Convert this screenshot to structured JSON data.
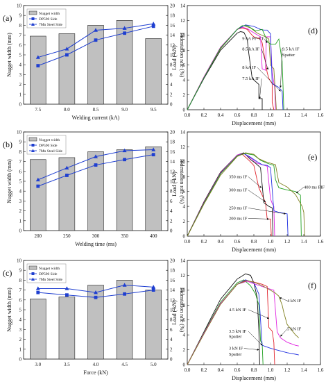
{
  "colors": {
    "bar_fill": "#c0c0c0",
    "dp590": "#1f3fd0",
    "steel": "#1f3fd0",
    "black": "#111111",
    "red": "#e0202a",
    "blue": "#2030e0",
    "magenta": "#e020e0",
    "olive": "#808020",
    "green": "#20a020",
    "gray": "#888888"
  },
  "chart_data": [
    {
      "panel": "(a)",
      "type": "bar",
      "categories": [
        "7.5",
        "8.0",
        "8.5",
        "9.0",
        "9.5"
      ],
      "xlabel": "Welding current (kA)",
      "ylabel": "Nugget width (mm)",
      "y2label": "Indentation rate (%)",
      "ylim": [
        0,
        10
      ],
      "yticks": [
        0,
        1,
        2,
        3,
        4,
        5,
        6,
        7,
        8,
        9,
        10
      ],
      "y2lim": [
        0,
        20
      ],
      "y2ticks": [
        0,
        2,
        4,
        6,
        8,
        10,
        12,
        14,
        16,
        18,
        20
      ],
      "legend": [
        "Nugget width",
        "DP590 Side",
        "7Mn Steel Side"
      ],
      "legend_position": "top-left",
      "bars": {
        "name": "Nugget width",
        "values": [
          6.9,
          7.15,
          8.0,
          8.5,
          6.65
        ]
      },
      "series": [
        {
          "name": "DP590 Side",
          "marker": "square",
          "axis": "right",
          "values": [
            7.8,
            10.0,
            13.0,
            14.4,
            15.8
          ]
        },
        {
          "name": "7Mn Steel Side",
          "marker": "triangle",
          "axis": "right",
          "values": [
            9.5,
            11.2,
            15.0,
            15.4,
            16.3
          ]
        }
      ]
    },
    {
      "panel": "(b)",
      "type": "bar",
      "categories": [
        "200",
        "250",
        "300",
        "350",
        "400"
      ],
      "xlabel": "Welding time (ms)",
      "ylabel": "Nugget width (mm)",
      "y2label": "Indentation rate (%)",
      "ylim": [
        0,
        10
      ],
      "yticks": [
        0,
        1,
        2,
        3,
        4,
        5,
        6,
        7,
        8,
        9,
        10
      ],
      "y2lim": [
        0,
        20
      ],
      "y2ticks": [
        0,
        2,
        4,
        6,
        8,
        10,
        12,
        14,
        16,
        18,
        20
      ],
      "legend": [
        "Nugget width",
        "DP590 Side",
        "7Mn Steel Side"
      ],
      "legend_position": "top-left",
      "bars": {
        "name": "Nugget width",
        "values": [
          7.2,
          7.4,
          8.0,
          8.2,
          8.5
        ]
      },
      "series": [
        {
          "name": "DP590 Side",
          "marker": "square",
          "axis": "right",
          "values": [
            9.0,
            11.2,
            13.3,
            14.4,
            15.4
          ]
        },
        {
          "name": "7Mn Steel Side",
          "marker": "triangle",
          "axis": "right",
          "values": [
            10.3,
            12.7,
            15.0,
            16.2,
            16.4
          ]
        }
      ]
    },
    {
      "panel": "(c)",
      "type": "bar",
      "categories": [
        "3.0",
        "3.5",
        "4.0",
        "4.5",
        "5.0"
      ],
      "xlabel": "Force (kN)",
      "ylabel": "Nugget width (mm)",
      "y2label": "Indentation rate (%)",
      "ylim": [
        0,
        10
      ],
      "yticks": [
        0,
        1,
        2,
        3,
        4,
        5,
        6,
        7,
        8,
        9,
        10
      ],
      "y2lim": [
        0,
        20
      ],
      "y2ticks": [
        0,
        2,
        4,
        6,
        8,
        10,
        12,
        14,
        16,
        18,
        20
      ],
      "legend": [
        "Nugget width",
        "DP590 Side",
        "7Mn Steel Side"
      ],
      "legend_position": "top-left",
      "bars": {
        "name": "Nugget width",
        "values": [
          6.1,
          6.3,
          7.5,
          8.0,
          7.0
        ]
      },
      "series": [
        {
          "name": "DP590 Side",
          "marker": "square",
          "axis": "right",
          "values": [
            13.5,
            13.0,
            12.5,
            13.2,
            14.0
          ]
        },
        {
          "name": "7Mn Steel Side",
          "marker": "triangle",
          "axis": "right",
          "values": [
            14.3,
            14.3,
            13.5,
            15.0,
            14.6
          ]
        }
      ]
    },
    {
      "panel": "(d)",
      "type": "line",
      "xlabel": "Displacement (mm)",
      "ylabel": "Load ( kN)",
      "xlim": [
        0,
        1.6
      ],
      "xticks": [
        "0.0",
        "0.2",
        "0.4",
        "0.6",
        "0.8",
        "1.0",
        "1.2",
        "1.4",
        "1.6"
      ],
      "ylim": [
        0,
        14
      ],
      "yticks": [
        0,
        2,
        4,
        6,
        8,
        10,
        12,
        14
      ],
      "series": [
        {
          "color": "black",
          "x": [
            0,
            0.2,
            0.4,
            0.6,
            0.64,
            0.68,
            0.72,
            0.74,
            0.78,
            0.86,
            0.86,
            0.9,
            0.9
          ],
          "y": [
            0,
            4.2,
            8,
            10.3,
            10.5,
            10.4,
            9.5,
            7.5,
            4.2,
            3.4,
            1.5,
            1.5,
            0
          ]
        },
        {
          "color": "red",
          "x": [
            0,
            0.2,
            0.4,
            0.6,
            0.66,
            0.72,
            0.78,
            0.8,
            0.88,
            0.9,
            0.96,
            0.98,
            1.02,
            1.02,
            1.04
          ],
          "y": [
            0,
            4.4,
            8.4,
            10.8,
            11,
            10.8,
            10,
            9.8,
            9.5,
            9,
            5,
            4.2,
            3.5,
            1,
            0
          ]
        },
        {
          "color": "magenta",
          "x": [
            0,
            0.2,
            0.4,
            0.6,
            0.66,
            0.72,
            0.82,
            0.88,
            0.9,
            0.94,
            0.95,
            1.0,
            1.02,
            1.05,
            1.06
          ],
          "y": [
            0,
            4.4,
            8.4,
            10.8,
            11.1,
            10.9,
            10.2,
            9.8,
            5.5,
            5.3,
            9.8,
            9.8,
            5,
            3,
            0
          ]
        },
        {
          "color": "olive",
          "x": [
            0,
            0.2,
            0.4,
            0.6,
            0.68,
            0.76,
            0.84,
            0.9,
            0.94,
            0.98,
            1.0,
            1.04,
            1.06,
            1.07
          ],
          "y": [
            0,
            4.3,
            8.2,
            10.8,
            11.3,
            11,
            10.3,
            10,
            9.8,
            9.5,
            6,
            5.5,
            2,
            0
          ]
        },
        {
          "color": "blue",
          "x": [
            0,
            0.2,
            0.4,
            0.6,
            0.7,
            0.8,
            0.88,
            0.92,
            0.96,
            1.0,
            1.02,
            1.1,
            1.14,
            1.15
          ],
          "y": [
            0,
            4.3,
            8.3,
            10.8,
            11.4,
            11.2,
            10.8,
            10.7,
            10.7,
            10.2,
            3.5,
            3,
            2.5,
            0
          ]
        },
        {
          "color": "green",
          "x": [
            0,
            0.2,
            0.4,
            0.6,
            0.66,
            0.72,
            0.82,
            0.9,
            0.94,
            0.96,
            1.0,
            1.06,
            1.1,
            1.14,
            1.16
          ],
          "y": [
            0,
            4.3,
            8.3,
            10.8,
            11.3,
            11.3,
            10.6,
            10.8,
            9.8,
            9.2,
            8.8,
            8.8,
            9.5,
            6.5,
            0
          ]
        }
      ],
      "annotations": [
        "9 kA PF-TT",
        "8.5 kA IF",
        "9.5 kA IF",
        "Spatter",
        "8 kA IF",
        "7.5 kA IF"
      ]
    },
    {
      "panel": "(e)",
      "type": "line",
      "xlabel": "Displacement (mm)",
      "ylabel": "Load ( kN)",
      "xlim": [
        0,
        1.6
      ],
      "xticks": [
        "0.0",
        "0.2",
        "0.4",
        "0.6",
        "0.8",
        "1.0",
        "1.2",
        "1.4",
        "1.6"
      ],
      "ylim": [
        0,
        14
      ],
      "yticks": [
        0,
        2,
        4,
        6,
        8,
        10,
        12,
        14
      ],
      "series": [
        {
          "color": "red",
          "x": [
            0,
            0.2,
            0.4,
            0.6,
            0.66,
            0.74,
            0.8,
            0.86,
            0.9,
            0.94,
            0.96,
            1.0,
            1.01
          ],
          "y": [
            0,
            4.6,
            8.6,
            10.8,
            11,
            10.2,
            9.5,
            6.5,
            5.5,
            4.5,
            2.3,
            2.3,
            0
          ]
        },
        {
          "color": "black",
          "x": [
            0,
            0.2,
            0.4,
            0.6,
            0.68,
            0.76,
            0.82,
            0.88,
            0.92,
            0.98,
            1.02,
            1.03
          ],
          "y": [
            0,
            4.6,
            8.6,
            10.9,
            11.2,
            10.3,
            9.8,
            9.2,
            4.5,
            4.0,
            3.8,
            0
          ]
        },
        {
          "color": "magenta",
          "x": [
            0,
            0.2,
            0.4,
            0.6,
            0.68,
            0.76,
            0.84,
            0.9,
            0.96,
            1.0,
            1.02,
            1.04,
            1.05
          ],
          "y": [
            0,
            4.5,
            8.5,
            10.9,
            11.1,
            10.5,
            9.8,
            9.6,
            9.4,
            5.0,
            4.4,
            4.0,
            0
          ]
        },
        {
          "color": "blue",
          "x": [
            0,
            0.2,
            0.4,
            0.6,
            0.68,
            0.76,
            0.84,
            0.9,
            0.96,
            1.0,
            1.04,
            1.1,
            1.2,
            1.21
          ],
          "y": [
            0,
            4.4,
            8.4,
            10.8,
            11.1,
            10.6,
            10.0,
            9.6,
            9.5,
            9.2,
            3.4,
            3.2,
            3.0,
            0
          ]
        },
        {
          "color": "green",
          "x": [
            0,
            0.2,
            0.4,
            0.6,
            0.7,
            0.8,
            0.88,
            0.96,
            1.04,
            1.06,
            1.1,
            1.2,
            1.3,
            1.36,
            1.37
          ],
          "y": [
            0,
            4.4,
            8.4,
            10.8,
            11.1,
            10.9,
            10.2,
            9.8,
            9.5,
            7.6,
            6.5,
            6.2,
            6.0,
            5.5,
            0
          ]
        },
        {
          "color": "olive",
          "x": [
            0,
            0.2,
            0.4,
            0.6,
            0.7,
            0.8,
            0.86,
            0.94,
            1.0,
            1.06,
            1.1,
            1.2,
            1.3,
            1.38,
            1.4,
            1.41
          ],
          "y": [
            0,
            4.3,
            8.2,
            10.7,
            11.2,
            11.0,
            10.4,
            10.0,
            9.8,
            9.6,
            7.2,
            6.6,
            5.6,
            4.0,
            3.2,
            0
          ]
        }
      ],
      "annotations": [
        "350 ms IF",
        "300 ms IF",
        "400 ms PIF",
        "250 ms IF",
        "200 ms IF"
      ]
    },
    {
      "panel": "(f)",
      "type": "line",
      "xlabel": "Displacement (mm)",
      "ylabel": "Load ( kN)",
      "xlim": [
        0,
        1.6
      ],
      "xticks": [
        "0.0",
        "0.2",
        "0.4",
        "0.6",
        "0.8",
        "1.0",
        "1.2",
        "1.4",
        "1.6"
      ],
      "ylim": [
        0,
        14
      ],
      "yticks": [
        0,
        2,
        4,
        6,
        8,
        10,
        12,
        14
      ],
      "series": [
        {
          "color": "black",
          "x": [
            0,
            0.2,
            0.4,
            0.6,
            0.7,
            0.76,
            0.8,
            0.84,
            0.86,
            0.87
          ],
          "y": [
            0,
            4.4,
            8.8,
            11.5,
            12.2,
            12.0,
            11.0,
            9.0,
            4.5,
            0
          ]
        },
        {
          "color": "green",
          "x": [
            0,
            0.2,
            0.4,
            0.6,
            0.68,
            0.76,
            0.82,
            0.86,
            0.88,
            0.9,
            0.91
          ],
          "y": [
            0,
            4.3,
            8.4,
            11.0,
            11.4,
            10.6,
            9.5,
            8.0,
            3.2,
            2.8,
            0
          ]
        },
        {
          "color": "blue",
          "x": [
            0,
            0.2,
            0.4,
            0.6,
            0.7,
            0.8,
            0.86,
            0.9,
            1.0,
            1.1,
            1.2,
            1.3,
            1.34
          ],
          "y": [
            0,
            4.2,
            8.2,
            10.8,
            11.4,
            11.0,
            9.5,
            2.6,
            2.2,
            1.9,
            1.6,
            1.4,
            1.3
          ]
        },
        {
          "color": "red",
          "x": [
            0,
            0.2,
            0.4,
            0.6,
            0.7,
            0.8,
            0.9,
            0.96,
            0.98,
            1.02,
            1.04,
            1.05
          ],
          "y": [
            0,
            4.2,
            8.2,
            10.8,
            11.3,
            11.1,
            10.8,
            10.5,
            5.0,
            4.5,
            3.0,
            0
          ]
        },
        {
          "color": "magenta",
          "x": [
            0,
            0.2,
            0.4,
            0.6,
            0.72,
            0.82,
            0.9,
            0.98,
            1.04,
            1.08,
            1.12,
            1.2,
            1.3,
            1.34
          ],
          "y": [
            0,
            4.2,
            8.2,
            10.8,
            11.2,
            10.8,
            10.5,
            10.2,
            10.0,
            4.4,
            3.6,
            3.0,
            2.6,
            2.5
          ]
        },
        {
          "color": "olive",
          "x": [
            0,
            0.2,
            0.4,
            0.6,
            0.72,
            0.82,
            0.92,
            1.0,
            1.06,
            1.1,
            1.14,
            1.16,
            1.2,
            1.3,
            1.34
          ],
          "y": [
            0,
            4.1,
            8.1,
            10.8,
            11.3,
            11.0,
            10.5,
            10.0,
            9.6,
            9.2,
            8.0,
            7.0,
            5.4,
            4.0,
            3.6
          ]
        }
      ],
      "annotations": [
        "4 kN IF",
        "4.5 kN IF",
        "3.5 kN IF",
        "Spatter",
        "5 kN IF",
        "3 kN IF",
        "Spatter"
      ]
    }
  ]
}
